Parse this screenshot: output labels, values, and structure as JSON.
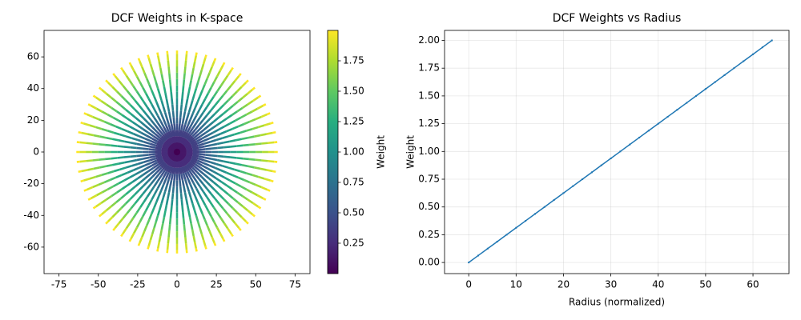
{
  "chart_data": [
    {
      "type": "radial-scatter",
      "title": "DCF Weights in K-space",
      "cmap": "viridis",
      "angles": [
        0,
        5.625,
        11.25,
        16.875,
        22.5,
        28.125,
        33.75,
        39.375,
        45,
        50.625,
        56.25,
        61.875,
        67.5,
        73.125,
        78.75,
        84.375,
        90,
        95.625,
        101.25,
        106.875,
        112.5,
        118.125,
        123.75,
        129.375,
        135,
        140.625,
        146.25,
        151.875,
        157.5,
        163.125,
        168.75,
        174.375,
        180,
        185.625,
        191.25,
        196.875,
        202.5,
        208.125,
        213.75,
        219.375,
        225,
        230.625,
        236.25,
        241.875,
        247.5,
        253.125,
        258.75,
        264.375,
        270,
        275.625,
        281.25,
        286.875,
        292.5,
        298.125,
        303.75,
        309.375,
        315,
        320.625,
        326.25,
        331.875,
        337.5,
        343.125,
        348.75,
        354.375
      ],
      "radii": [
        0,
        4,
        8,
        12,
        16,
        20,
        24,
        28,
        32,
        36,
        40,
        44,
        48,
        52,
        56,
        60,
        64
      ],
      "weights": [
        0,
        0.125,
        0.25,
        0.375,
        0.5,
        0.625,
        0.75,
        0.875,
        1,
        1.125,
        1.25,
        1.375,
        1.5,
        1.625,
        1.75,
        1.875,
        2
      ],
      "xlim": [
        -84.5,
        84.5
      ],
      "ylim": [
        -76.7,
        76.7
      ],
      "xticks": [
        -75,
        -50,
        -25,
        0,
        25,
        50,
        75
      ],
      "yticks": [
        -60,
        -40,
        -20,
        0,
        20,
        40,
        60
      ],
      "clim": [
        0,
        2
      ],
      "clabel": "Weight",
      "cticks": [
        {
          "value": 0.25,
          "label": "0.25"
        },
        {
          "value": 0.5,
          "label": "0.50"
        },
        {
          "value": 0.75,
          "label": "0.75"
        },
        {
          "value": 1,
          "label": "1.00"
        },
        {
          "value": 1.25,
          "label": "1.25"
        },
        {
          "value": 1.5,
          "label": "1.50"
        },
        {
          "value": 1.75,
          "label": "1.75"
        }
      ]
    },
    {
      "type": "line",
      "title": "DCF Weights vs Radius",
      "xlabel": "Radius (normalized)",
      "ylabel": "Weight",
      "color": "#1f77b4",
      "grid": true,
      "x": [
        0,
        2,
        4,
        6,
        8,
        10,
        12,
        14,
        16,
        18,
        20,
        22,
        24,
        26,
        28,
        30,
        32,
        34,
        36,
        38,
        40,
        42,
        44,
        46,
        48,
        50,
        52,
        54,
        56,
        58,
        60,
        62,
        64
      ],
      "values": [
        0,
        0.0625,
        0.125,
        0.1875,
        0.25,
        0.3125,
        0.375,
        0.4375,
        0.5,
        0.5625,
        0.625,
        0.6875,
        0.75,
        0.8125,
        0.875,
        0.9375,
        1,
        1.0625,
        1.125,
        1.1875,
        1.25,
        1.3125,
        1.375,
        1.4375,
        1.5,
        1.5625,
        1.625,
        1.6875,
        1.75,
        1.8125,
        1.875,
        1.9375,
        2
      ],
      "xlim": [
        -5.1,
        67.6
      ],
      "ylim": [
        -0.1,
        2.09
      ],
      "xticks": [
        0,
        10,
        20,
        30,
        40,
        50,
        60
      ],
      "yticks": [
        {
          "value": 0,
          "label": "0.00"
        },
        {
          "value": 0.25,
          "label": "0.25"
        },
        {
          "value": 0.5,
          "label": "0.50"
        },
        {
          "value": 0.75,
          "label": "0.75"
        },
        {
          "value": 1,
          "label": "1.00"
        },
        {
          "value": 1.25,
          "label": "1.25"
        },
        {
          "value": 1.5,
          "label": "1.50"
        },
        {
          "value": 1.75,
          "label": "1.75"
        },
        {
          "value": 2,
          "label": "2.00"
        }
      ]
    }
  ]
}
